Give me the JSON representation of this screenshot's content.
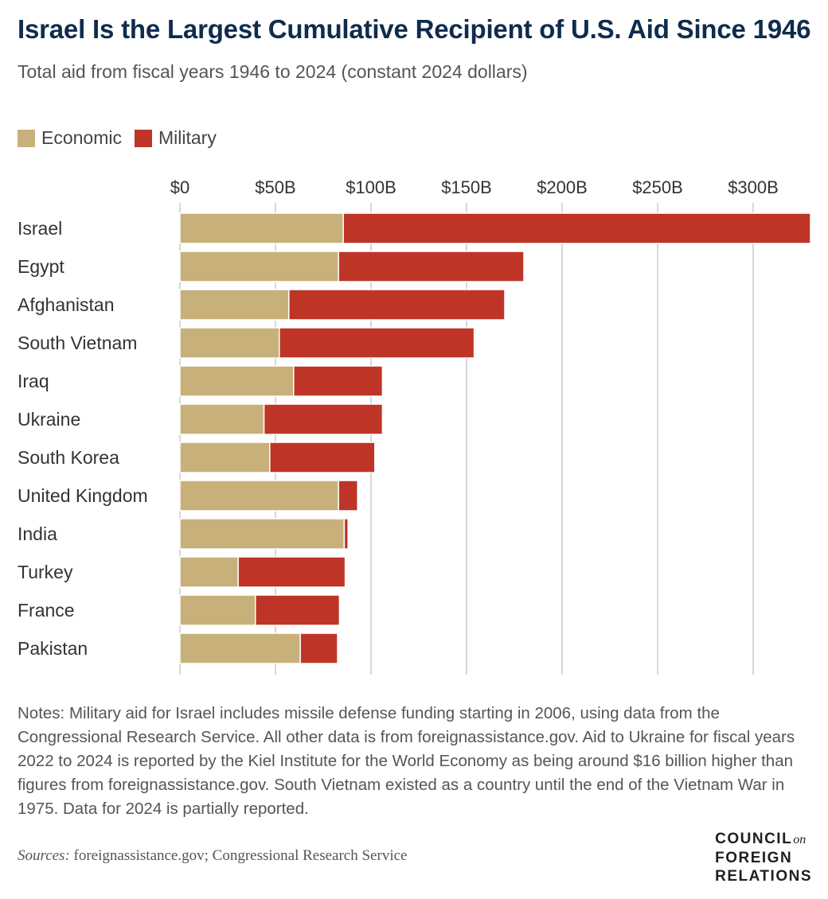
{
  "header": {
    "title": "Israel Is the Largest Cumulative Recipient of U.S. Aid Since 1946",
    "subtitle": "Total aid from fiscal years 1946 to 2024 (constant 2024 dollars)"
  },
  "legend": [
    {
      "label": "Economic",
      "color": "#c8b07a"
    },
    {
      "label": "Military",
      "color": "#be3427"
    }
  ],
  "chart_data": {
    "type": "bar",
    "orientation": "horizontal",
    "stacked": true,
    "title": "Israel Is the Largest Cumulative Recipient of U.S. Aid Since 1946",
    "subtitle": "Total aid from fiscal years 1946 to 2024 (constant 2024 dollars)",
    "xlim": [
      0,
      330
    ],
    "x_ticks": [
      0,
      50,
      100,
      150,
      200,
      250,
      300
    ],
    "x_tick_labels": [
      "$0",
      "$50B",
      "$100B",
      "$150B",
      "$200B",
      "$250B",
      "$300B"
    ],
    "grid": "vertical",
    "legend_position": "top-left",
    "categories": [
      "Israel",
      "Egypt",
      "Afghanistan",
      "South Vietnam",
      "Iraq",
      "Ukraine",
      "South Korea",
      "United Kingdom",
      "India",
      "Turkey",
      "France",
      "Pakistan"
    ],
    "series": [
      {
        "name": "Economic",
        "color": "#c8b07a",
        "values": [
          85.5,
          83,
          57,
          52,
          59.5,
          44,
          47,
          83,
          86,
          30.5,
          39.5,
          63
        ]
      },
      {
        "name": "Military",
        "color": "#be3427",
        "values": [
          244.5,
          97,
          113,
          102,
          46.5,
          62,
          55,
          10,
          2,
          56,
          44,
          19.5
        ]
      }
    ]
  },
  "notes": "Notes: Military aid for Israel includes missile defense funding starting in 2006, using data from the Congressional Research Service. All other data is from foreignassistance.gov. Aid to Ukraine for fiscal years 2022 to 2024 is reported by the Kiel Institute for the World Economy as being around $16 billion higher than figures from foreignassistance.gov. South Vietnam existed as a country until the end of the Vietnam War in 1975. Data for 2024 is partially reported.",
  "sources": {
    "label": "Sources:",
    "text": " foreignassistance.gov; Congressional Research Service"
  },
  "logo": {
    "line1": "COUNCIL",
    "on": "on",
    "line2": "FOREIGN",
    "line3": "RELATIONS"
  }
}
